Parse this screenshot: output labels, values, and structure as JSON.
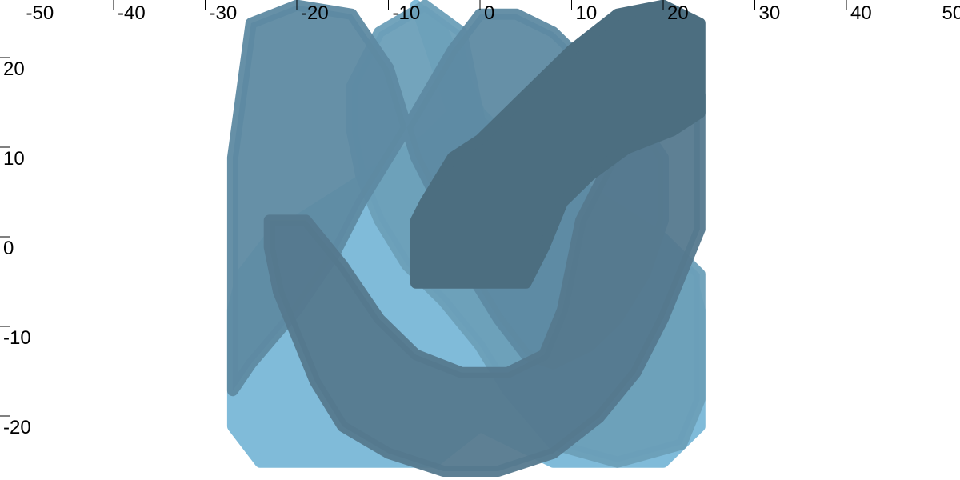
{
  "chart_data": {
    "type": "area",
    "title": "",
    "xlabel": "",
    "ylabel": "",
    "xlim": [
      -52,
      52
    ],
    "ylim": [
      -25,
      27
    ],
    "x_ticks": [
      -50,
      -40,
      -30,
      -20,
      -10,
      0,
      10,
      20,
      30,
      40,
      50
    ],
    "x_tick_labels": [
      "-50",
      "-40",
      "-30",
      "-20",
      "-10",
      "0",
      "10",
      "20",
      "30",
      "40",
      "50"
    ],
    "y_ticks": [
      20,
      10,
      0,
      -10,
      -20
    ],
    "y_tick_labels": [
      "20",
      "10",
      "0",
      "-10",
      "-20"
    ],
    "x_axis_position": "top",
    "y_axis_position": "left",
    "grid": false,
    "legend": "none",
    "series": [
      {
        "color": "#80BBD9",
        "opacity": 1,
        "points": [
          [
            -7,
            27
          ],
          [
            -4,
            24
          ],
          [
            0,
            15
          ],
          [
            3,
            12
          ],
          [
            20,
            1
          ],
          [
            23,
            -3
          ],
          [
            24,
            -7
          ],
          [
            24,
            -20
          ],
          [
            20,
            -24
          ],
          [
            8,
            -24
          ],
          [
            0,
            -20
          ],
          [
            -5,
            -24
          ],
          [
            -24,
            -24
          ],
          [
            -27,
            -20
          ],
          [
            -27,
            -7
          ],
          [
            -26,
            -3
          ],
          [
            -23,
            1
          ],
          [
            -6,
            12
          ],
          [
            -3,
            15
          ]
        ]
      },
      {
        "color": "#6C9FB8",
        "opacity": 0.95,
        "points": [
          [
            -11,
            24
          ],
          [
            -6,
            27
          ],
          [
            -2,
            24
          ],
          [
            0,
            14
          ],
          [
            3,
            12
          ],
          [
            20,
            1
          ],
          [
            24,
            -3
          ],
          [
            24,
            -17
          ],
          [
            22,
            -22
          ],
          [
            15,
            -24
          ],
          [
            8,
            -22
          ],
          [
            3,
            -16
          ],
          [
            0,
            -11
          ],
          [
            -4,
            -6
          ],
          [
            -8,
            -2
          ],
          [
            -11,
            3
          ],
          [
            -13,
            8
          ],
          [
            -14,
            13
          ],
          [
            -14,
            18
          ]
        ]
      },
      {
        "color": "#5E8AA2",
        "opacity": 0.95,
        "points": [
          [
            -25,
            25
          ],
          [
            -20,
            27
          ],
          [
            -14,
            26
          ],
          [
            -10,
            20
          ],
          [
            -7,
            10
          ],
          [
            -4,
            4
          ],
          [
            -1,
            -3
          ],
          [
            2,
            -8
          ],
          [
            5,
            -12
          ],
          [
            8,
            -13
          ],
          [
            12,
            -11
          ],
          [
            15,
            -8
          ],
          [
            18,
            -3
          ],
          [
            20,
            3
          ],
          [
            20,
            10
          ],
          [
            16,
            16
          ],
          [
            12,
            20
          ],
          [
            8,
            24
          ],
          [
            4,
            26
          ],
          [
            0,
            26
          ],
          [
            -3,
            22
          ],
          [
            -7,
            15
          ],
          [
            -10,
            10
          ],
          [
            -13,
            5
          ],
          [
            -16,
            -1
          ],
          [
            -20,
            -7
          ],
          [
            -25,
            -13
          ],
          [
            -27,
            -16
          ],
          [
            -27,
            10
          ]
        ]
      },
      {
        "color": "#55798E",
        "opacity": 0.95,
        "points": [
          [
            20,
            18
          ],
          [
            24,
            17
          ],
          [
            24,
            2
          ],
          [
            22,
            -3
          ],
          [
            20,
            -8
          ],
          [
            17,
            -14
          ],
          [
            13,
            -19
          ],
          [
            8,
            -23
          ],
          [
            2,
            -25
          ],
          [
            -4,
            -25
          ],
          [
            -10,
            -23
          ],
          [
            -15,
            -20
          ],
          [
            -18,
            -15
          ],
          [
            -20,
            -10
          ],
          [
            -22,
            -5
          ],
          [
            -23,
            0
          ],
          [
            -23,
            3
          ],
          [
            -19,
            3
          ],
          [
            -15,
            -2
          ],
          [
            -11,
            -8
          ],
          [
            -7,
            -12
          ],
          [
            -2,
            -14
          ],
          [
            3,
            -14
          ],
          [
            7,
            -12
          ],
          [
            9,
            -7
          ],
          [
            10,
            -2
          ],
          [
            11,
            3
          ],
          [
            13,
            7
          ],
          [
            16,
            13
          ]
        ]
      },
      {
        "color": "#4C6E80",
        "opacity": 1,
        "points": [
          [
            -7,
            3
          ],
          [
            -6,
            5
          ],
          [
            -3,
            10
          ],
          [
            0,
            12
          ],
          [
            4,
            16
          ],
          [
            10,
            22
          ],
          [
            15,
            26
          ],
          [
            20,
            27
          ],
          [
            24,
            25
          ],
          [
            24,
            15
          ],
          [
            21,
            13
          ],
          [
            16,
            11
          ],
          [
            12,
            8
          ],
          [
            9,
            5
          ],
          [
            7,
            0
          ],
          [
            5,
            -4
          ],
          [
            -7,
            -4
          ]
        ]
      }
    ]
  }
}
